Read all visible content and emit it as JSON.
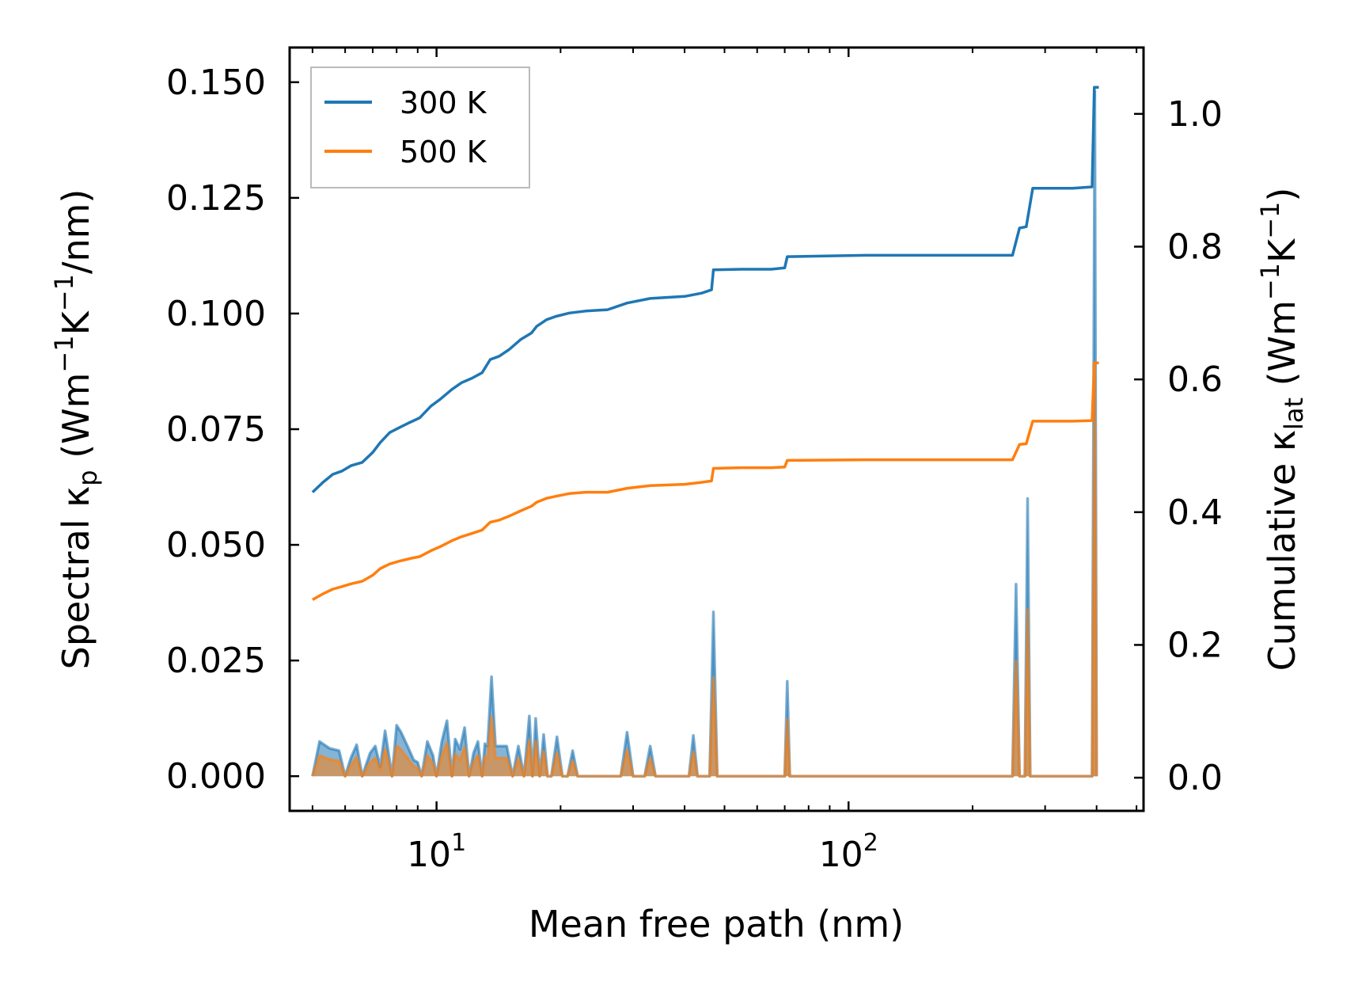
{
  "chart_data": {
    "type": "line",
    "title": "",
    "xlabel": "Mean free path (nm)",
    "ylabel_left": {
      "prefix": "Spectral κ",
      "sub": "p",
      "suffix_open": " (Wm",
      "sup1": "−1",
      "mid": "K",
      "sup2": "−1",
      "suffix_close": "/nm)"
    },
    "ylabel_right": {
      "prefix": "Cumulative κ",
      "sub": "lat",
      "suffix_open": " (Wm",
      "sup1": "−1",
      "mid": "K",
      "sup2": "−1",
      "suffix_close": ")"
    },
    "xscale": "log",
    "xlim": [
      4.4,
      520
    ],
    "ylim_left": [
      -0.0075,
      0.1575
    ],
    "ylim_right": [
      -0.05,
      1.1
    ],
    "x_ticks": [
      {
        "value": 10,
        "base": "10",
        "exp": "1"
      },
      {
        "value": 100,
        "base": "10",
        "exp": "2"
      }
    ],
    "y_ticks_left": [
      "0.000",
      "0.025",
      "0.050",
      "0.075",
      "0.100",
      "0.125",
      "0.150"
    ],
    "y_ticks_right": [
      "0.0",
      "0.2",
      "0.4",
      "0.6",
      "0.8",
      "1.0"
    ],
    "legend": {
      "position": "upper-left",
      "entries": [
        {
          "label": "300 K",
          "color": "#1f77b4"
        },
        {
          "label": "500 K",
          "color": "#ff7f0e"
        }
      ]
    },
    "series": [
      {
        "name": "300 K cumulative",
        "axis": "right",
        "color": "#1f77b4",
        "x": [
          5.0,
          5.3,
          5.6,
          5.9,
          6.2,
          6.6,
          7.0,
          7.3,
          7.7,
          8.1,
          8.6,
          9.1,
          9.7,
          10.2,
          10.9,
          11.5,
          12.2,
          12.9,
          13.5,
          14.2,
          15.0,
          16.0,
          17.0,
          17.5,
          18.5,
          19.5,
          21.0,
          23.0,
          26.0,
          29.0,
          33.0,
          40.0,
          44.0,
          46.5,
          47.0,
          55.0,
          65.0,
          70.0,
          71.0,
          110.0,
          180.0,
          250.0,
          260.0,
          270.0,
          280.0,
          350.0,
          390.0,
          395.0,
          405.0
        ],
        "y": [
          0.43,
          0.445,
          0.457,
          0.462,
          0.47,
          0.475,
          0.49,
          0.505,
          0.52,
          0.527,
          0.535,
          0.542,
          0.56,
          0.57,
          0.585,
          0.595,
          0.602,
          0.61,
          0.63,
          0.635,
          0.645,
          0.66,
          0.67,
          0.68,
          0.69,
          0.695,
          0.7,
          0.703,
          0.705,
          0.715,
          0.722,
          0.725,
          0.73,
          0.735,
          0.765,
          0.766,
          0.766,
          0.768,
          0.785,
          0.787,
          0.787,
          0.787,
          0.828,
          0.83,
          0.888,
          0.888,
          0.89,
          1.04,
          1.04
        ]
      },
      {
        "name": "500 K cumulative",
        "axis": "right",
        "color": "#ff7f0e",
        "x": [
          5.0,
          5.3,
          5.6,
          5.9,
          6.2,
          6.6,
          7.0,
          7.3,
          7.7,
          8.1,
          8.6,
          9.1,
          9.7,
          10.2,
          10.9,
          11.5,
          12.2,
          12.9,
          13.5,
          14.2,
          15.0,
          16.0,
          17.0,
          17.5,
          18.5,
          19.5,
          21.0,
          23.0,
          26.0,
          29.0,
          33.0,
          40.0,
          44.0,
          46.5,
          47.0,
          55.0,
          65.0,
          70.0,
          71.0,
          110.0,
          180.0,
          250.0,
          260.0,
          270.0,
          280.0,
          350.0,
          390.0,
          395.0,
          405.0
        ],
        "y": [
          0.268,
          0.277,
          0.284,
          0.288,
          0.292,
          0.296,
          0.305,
          0.315,
          0.322,
          0.326,
          0.33,
          0.333,
          0.342,
          0.348,
          0.357,
          0.363,
          0.368,
          0.373,
          0.385,
          0.388,
          0.394,
          0.402,
          0.409,
          0.415,
          0.421,
          0.424,
          0.428,
          0.43,
          0.43,
          0.436,
          0.44,
          0.442,
          0.445,
          0.447,
          0.466,
          0.467,
          0.467,
          0.468,
          0.478,
          0.479,
          0.479,
          0.479,
          0.502,
          0.503,
          0.537,
          0.537,
          0.538,
          0.625,
          0.625
        ]
      },
      {
        "name": "300 K spectral",
        "axis": "left",
        "color": "#1f77b4",
        "fill": true,
        "x": [
          5.0,
          5.2,
          5.5,
          5.8,
          6.0,
          6.2,
          6.4,
          6.6,
          6.9,
          7.1,
          7.3,
          7.5,
          7.8,
          8.0,
          8.2,
          8.5,
          8.8,
          9.0,
          9.2,
          9.5,
          9.8,
          10.0,
          10.3,
          10.6,
          10.9,
          11.1,
          11.4,
          11.7,
          12.0,
          12.3,
          12.6,
          12.9,
          13.1,
          13.3,
          13.6,
          13.9,
          14.3,
          14.8,
          15.3,
          15.8,
          16.3,
          16.8,
          17.1,
          17.4,
          17.8,
          18.2,
          18.6,
          19.0,
          19.6,
          20.2,
          20.8,
          21.4,
          22.0,
          22.6,
          23.2,
          26.0,
          27.0,
          28.0,
          29.0,
          30.0,
          31.0,
          32.0,
          33.0,
          34.0,
          40.0,
          41.0,
          42.0,
          43.0,
          45.0,
          46.0,
          47.0,
          48.0,
          49.0,
          66.0,
          69.0,
          70.0,
          71.0,
          72.0,
          245.0,
          250.0,
          255.0,
          260.0,
          264.0,
          268.0,
          272.0,
          276.0,
          283.0,
          380.0,
          385.0,
          390.0,
          396.0,
          400.0
        ],
        "y": [
          0.0,
          0.0075,
          0.006,
          0.0055,
          0.0,
          0.004,
          0.0068,
          0.0,
          0.005,
          0.0065,
          0.002,
          0.0098,
          0.0,
          0.011,
          0.0095,
          0.0065,
          0.0035,
          0.003,
          0.0,
          0.0075,
          0.0045,
          0.0,
          0.0075,
          0.012,
          0.0,
          0.008,
          0.0058,
          0.0105,
          0.0,
          0.005,
          0.0075,
          0.0,
          0.007,
          0.0065,
          0.0215,
          0.0065,
          0.0065,
          0.0065,
          0.0,
          0.0065,
          0.0,
          0.013,
          0.0,
          0.0125,
          0.0,
          0.009,
          0.0,
          0.0,
          0.0085,
          0.0,
          0.0,
          0.0055,
          0.0,
          0.0,
          0.0,
          0.0,
          0.0,
          0.0,
          0.0095,
          0.0,
          0.0,
          0.0,
          0.0065,
          0.0,
          0.0,
          0.0,
          0.0088,
          0.0,
          0.0,
          0.0,
          0.0355,
          0.0,
          0.0,
          0.0,
          0.0,
          0.0,
          0.0205,
          0.0,
          0.0,
          0.0,
          0.0415,
          0.0,
          0.0,
          0.0,
          0.06,
          0.0,
          0.0,
          0.0,
          0.0,
          0.0,
          0.148,
          0.0
        ]
      },
      {
        "name": "500 K spectral",
        "axis": "left",
        "color": "#ff7f0e",
        "fill": true,
        "x": [
          5.0,
          5.2,
          5.5,
          5.8,
          6.0,
          6.2,
          6.4,
          6.6,
          6.9,
          7.1,
          7.3,
          7.5,
          7.8,
          8.0,
          8.2,
          8.5,
          8.8,
          9.0,
          9.2,
          9.5,
          9.8,
          10.0,
          10.3,
          10.6,
          10.9,
          11.1,
          11.4,
          11.7,
          12.0,
          12.3,
          12.6,
          12.9,
          13.1,
          13.3,
          13.6,
          13.9,
          14.3,
          14.8,
          15.3,
          15.8,
          16.3,
          16.8,
          17.1,
          17.4,
          17.8,
          18.2,
          18.6,
          19.0,
          19.6,
          20.2,
          20.8,
          21.4,
          22.0,
          22.6,
          23.2,
          26.0,
          27.0,
          28.0,
          29.0,
          30.0,
          31.0,
          32.0,
          33.0,
          34.0,
          40.0,
          41.0,
          42.0,
          43.0,
          45.0,
          46.0,
          47.0,
          48.0,
          49.0,
          66.0,
          69.0,
          70.0,
          71.0,
          72.0,
          245.0,
          250.0,
          255.0,
          260.0,
          264.0,
          268.0,
          272.0,
          276.0,
          283.0,
          380.0,
          385.0,
          390.0,
          396.0,
          400.0
        ],
        "y": [
          0.0,
          0.0045,
          0.0036,
          0.0033,
          0.0,
          0.0024,
          0.0041,
          0.0,
          0.003,
          0.0039,
          0.0012,
          0.0059,
          0.0,
          0.0066,
          0.0057,
          0.0039,
          0.0021,
          0.0018,
          0.0,
          0.0045,
          0.0027,
          0.0,
          0.0045,
          0.0072,
          0.0,
          0.0048,
          0.0035,
          0.0063,
          0.0,
          0.003,
          0.0045,
          0.0,
          0.0042,
          0.0039,
          0.0129,
          0.0039,
          0.0039,
          0.0039,
          0.0,
          0.0039,
          0.0,
          0.0078,
          0.0,
          0.0075,
          0.0,
          0.0054,
          0.0,
          0.0,
          0.0051,
          0.0,
          0.0,
          0.0033,
          0.0,
          0.0,
          0.0,
          0.0,
          0.0,
          0.0,
          0.0057,
          0.0,
          0.0,
          0.0,
          0.0039,
          0.0,
          0.0,
          0.0,
          0.0053,
          0.0,
          0.0,
          0.0,
          0.0213,
          0.0,
          0.0,
          0.0,
          0.0,
          0.0,
          0.0123,
          0.0,
          0.0,
          0.0,
          0.0249,
          0.0,
          0.0,
          0.0,
          0.036,
          0.0,
          0.0,
          0.0,
          0.0,
          0.0,
          0.0888,
          0.0
        ]
      }
    ]
  }
}
